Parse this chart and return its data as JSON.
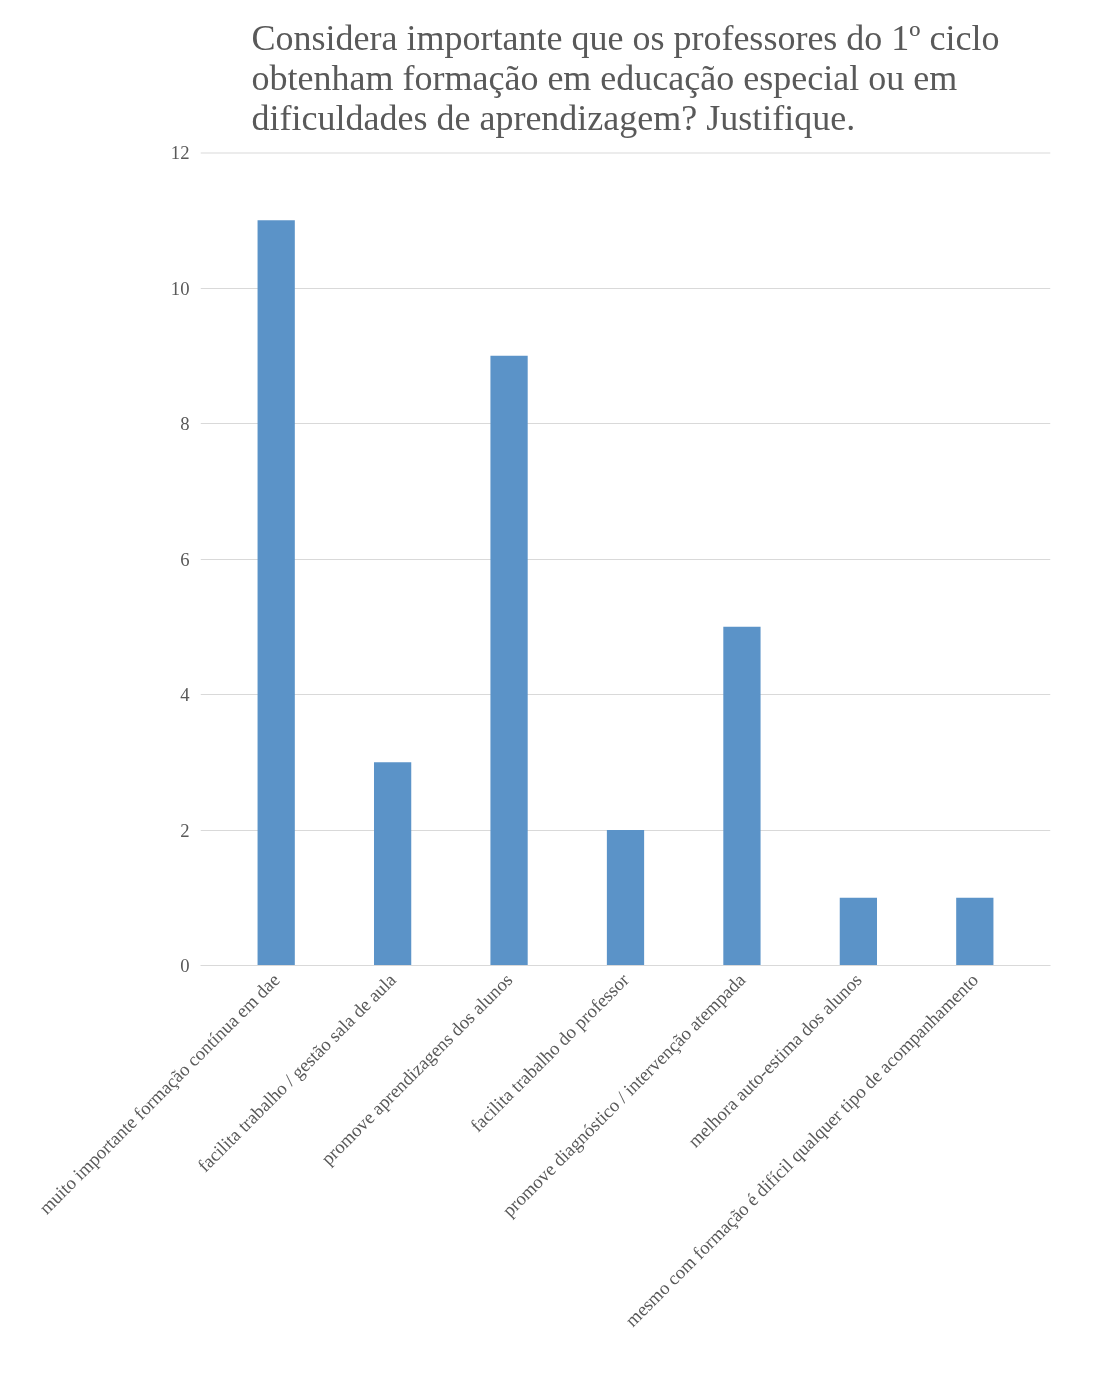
{
  "chart_data": {
    "type": "bar",
    "title": "Considera importante que os professores do 1º ciclo obtenham formação em educação especial ou em dificuldades de aprendizagem? Justifique.",
    "categories": [
      "muito importante formação contínua em dae",
      "facilita trabalho / gestão sala de aula",
      "promove aprendizagens dos alunos",
      "facilita trabalho do professor",
      "promove diagnóstico / intervenção atempada",
      "melhora auto-estima dos alunos",
      "mesmo com formação é difícil qualquer tipo de acompanhamento"
    ],
    "values": [
      11,
      3,
      9,
      2,
      5,
      1,
      1
    ],
    "color": "#5b93c8",
    "ylim": [
      0,
      12
    ],
    "yticks": [
      0,
      2,
      4,
      6,
      8,
      10,
      12
    ],
    "grid": "y"
  }
}
